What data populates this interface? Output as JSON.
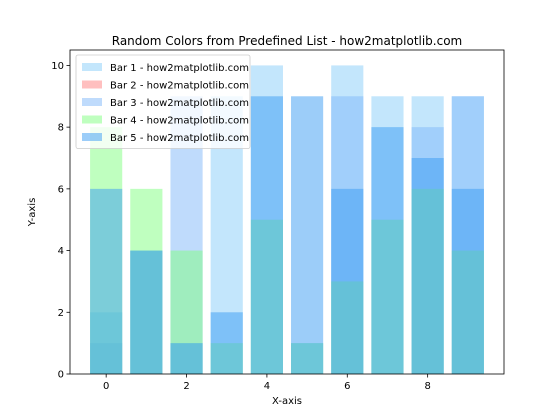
{
  "chart_data": {
    "type": "bar",
    "title": "Random Colors from Predefined List - how2matplotlib.com",
    "xlabel": "X-axis",
    "ylabel": "Y-axis",
    "x": [
      0,
      1,
      2,
      3,
      4,
      5,
      6,
      7,
      8,
      9
    ],
    "xlim": [
      -0.9,
      9.9
    ],
    "ylim": [
      0,
      10.5
    ],
    "xticks": [
      0,
      2,
      4,
      6,
      8
    ],
    "yticks": [
      0,
      2,
      4,
      6,
      8,
      10
    ],
    "grid": false,
    "legend_position": "top-left",
    "bar_alpha": 0.5,
    "series": [
      {
        "name": "Bar 1 - how2matplotlib.com",
        "color": "#87CEFA",
        "values": [
          2,
          4,
          1,
          9,
          10,
          1,
          10,
          9,
          9,
          9
        ]
      },
      {
        "name": "Bar 2 - how2matplotlib.com",
        "color": "#FF7F7F",
        "values": [
          0,
          0,
          0,
          0,
          0,
          0,
          0,
          0,
          0,
          0
        ]
      },
      {
        "name": "Bar 3 - how2matplotlib.com",
        "color": "#7FB8FA",
        "values": [
          1,
          4,
          9,
          0,
          0,
          0,
          9,
          0,
          8,
          9
        ]
      },
      {
        "name": "Bar 4 - how2matplotlib.com",
        "color": "#7FFF7F",
        "values": [
          8,
          6,
          4,
          1,
          5,
          1,
          3,
          5,
          6,
          4
        ]
      },
      {
        "name": "Bar 5 - how2matplotlib.com",
        "color": "#3A9BF4",
        "values": [
          6,
          4,
          1,
          2,
          9,
          9,
          6,
          8,
          7,
          6
        ]
      }
    ]
  }
}
